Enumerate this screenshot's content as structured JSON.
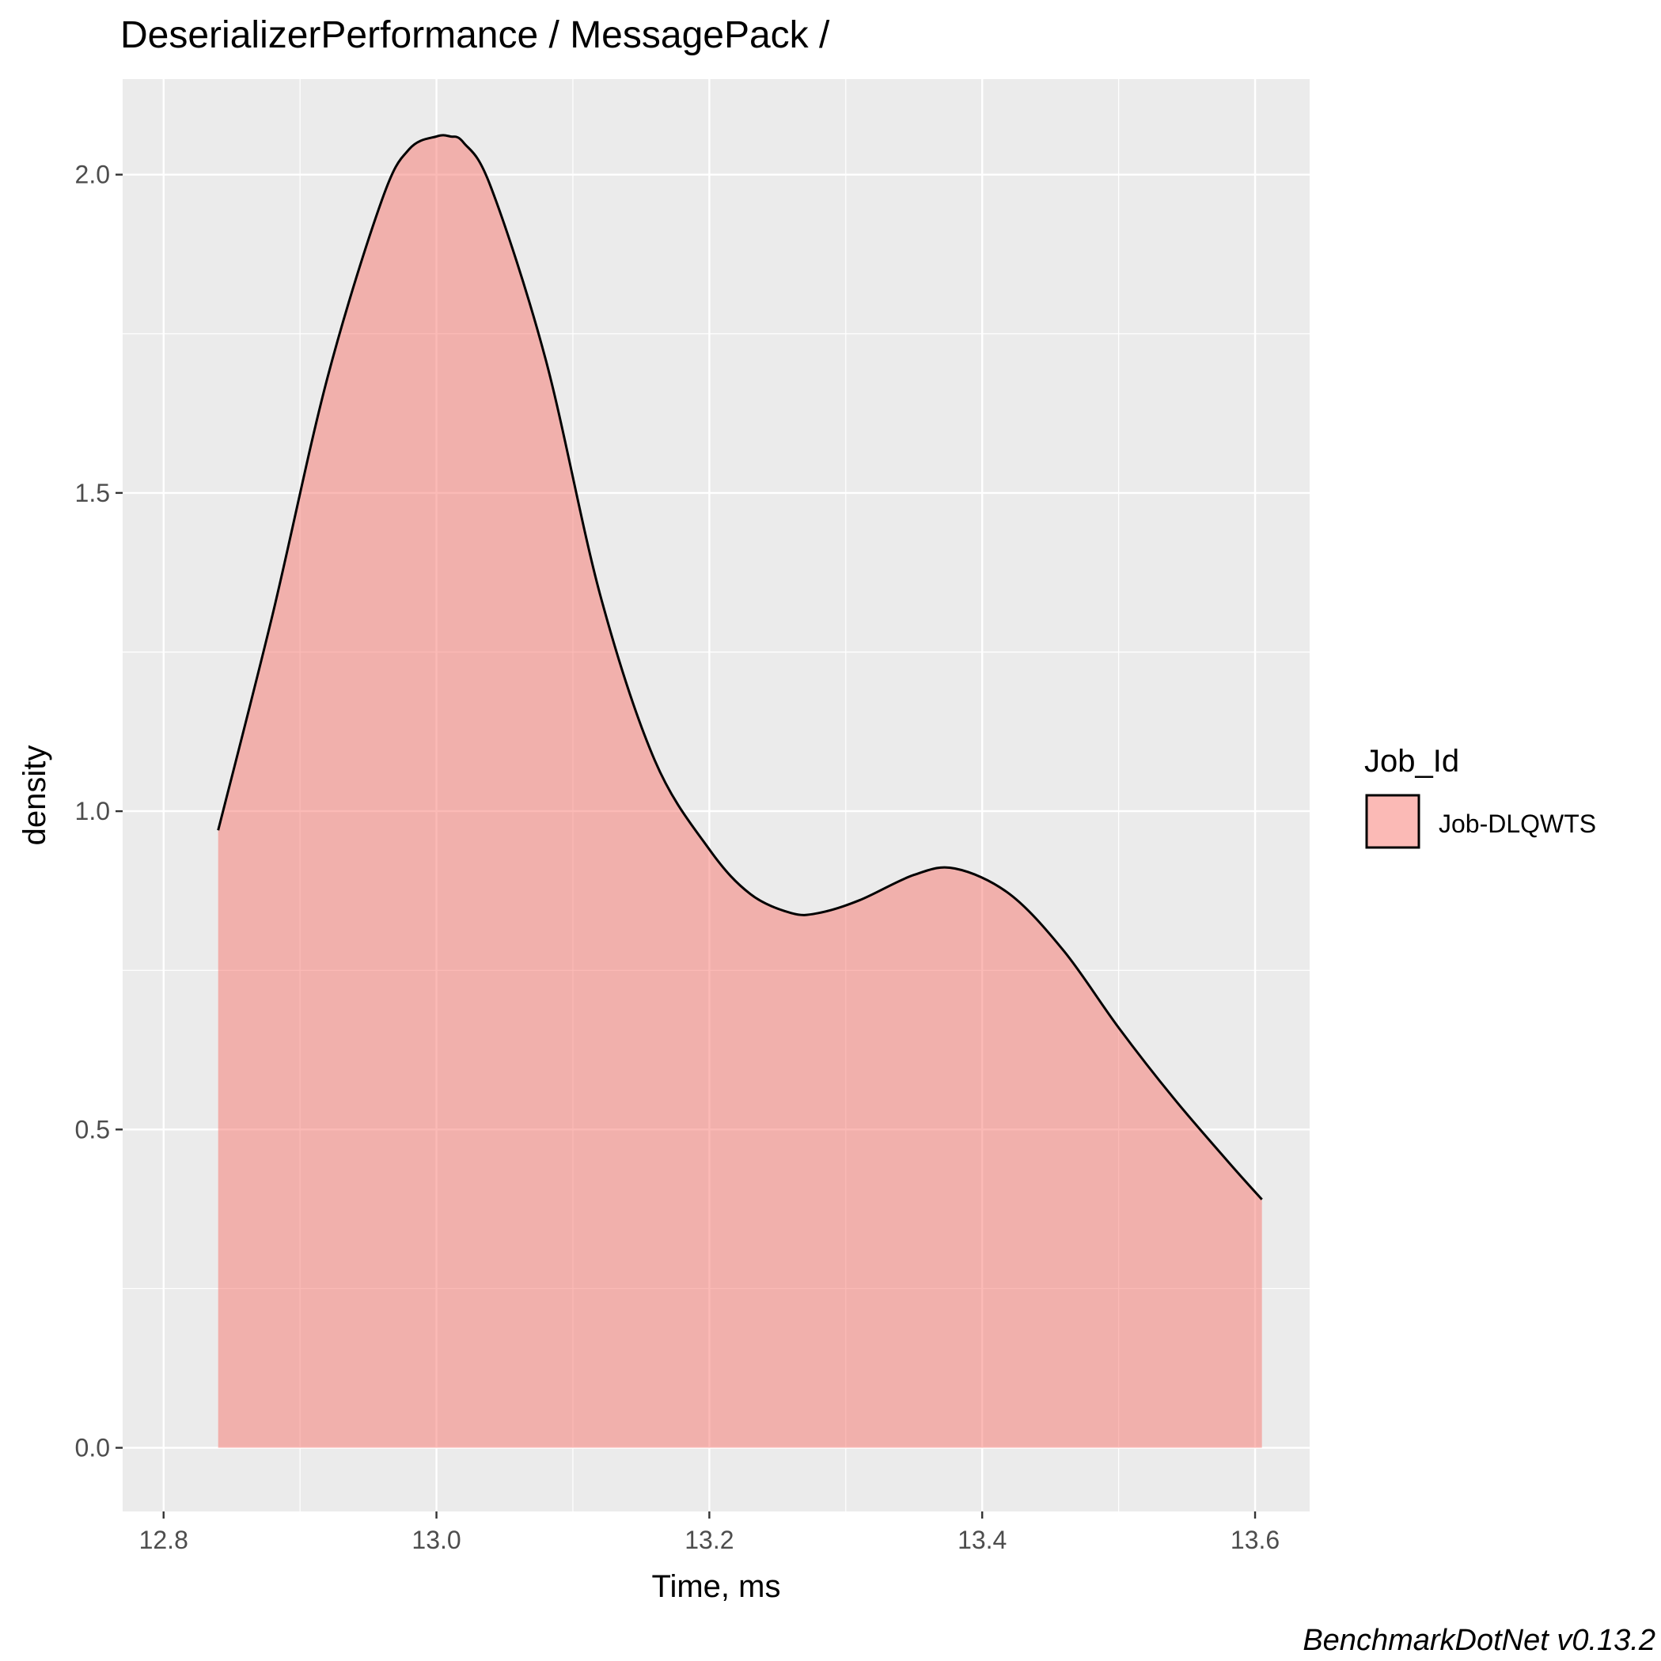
{
  "chart_data": {
    "type": "area",
    "title": "DeserializerPerformance / MessagePack /",
    "xlabel": "Time, ms",
    "ylabel": "density",
    "caption": "BenchmarkDotNet v0.13.2",
    "xlim": [
      12.77,
      13.64
    ],
    "ylim": [
      -0.1,
      2.15
    ],
    "x_ticks": [
      12.8,
      13.0,
      13.2,
      13.4,
      13.6
    ],
    "x_tick_labels": [
      "12.8",
      "13.0",
      "13.2",
      "13.4",
      "13.6"
    ],
    "y_ticks": [
      0.0,
      0.5,
      1.0,
      1.5,
      2.0
    ],
    "y_tick_labels": [
      "0.0",
      "0.5",
      "1.0",
      "1.5",
      "2.0"
    ],
    "grid": true,
    "legend": {
      "title": "Job_Id",
      "position": "right",
      "entries": [
        "Job-DLQWTS"
      ]
    },
    "series": [
      {
        "name": "Job-DLQWTS",
        "color": "#f8766d",
        "x": [
          12.84,
          12.88,
          12.92,
          12.96,
          12.98,
          13.0,
          13.01,
          13.02,
          13.04,
          13.08,
          13.12,
          13.16,
          13.2,
          13.23,
          13.26,
          13.28,
          13.31,
          13.35,
          13.38,
          13.42,
          13.46,
          13.5,
          13.54,
          13.58,
          13.605
        ],
        "y": [
          0.97,
          1.31,
          1.68,
          1.96,
          2.04,
          2.06,
          2.06,
          2.05,
          1.98,
          1.71,
          1.34,
          1.08,
          0.94,
          0.87,
          0.84,
          0.84,
          0.86,
          0.9,
          0.91,
          0.87,
          0.78,
          0.66,
          0.55,
          0.45,
          0.39
        ]
      }
    ]
  }
}
